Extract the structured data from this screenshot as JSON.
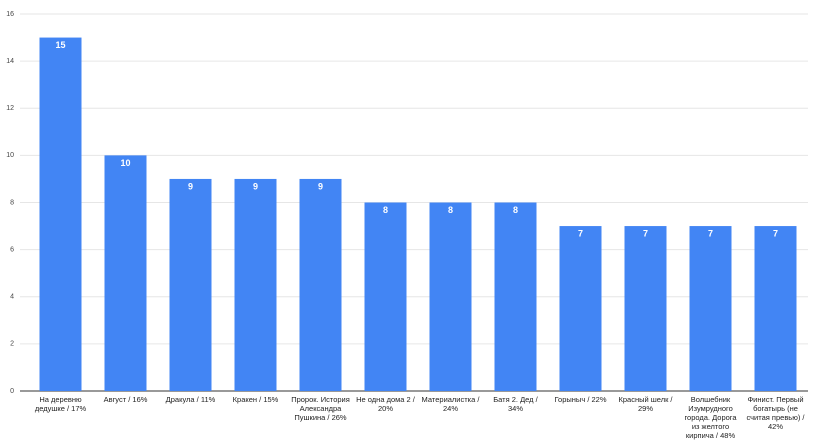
{
  "chart_data": {
    "type": "bar",
    "categories": [
      "На деревню дедушке / 17%",
      "Август / 16%",
      "Дракула / 11%",
      "Кракен / 15%",
      "Пророк. История Александра Пушкина / 26%",
      "Не одна дома 2 / 20%",
      "Материалистка / 24%",
      "Батя 2. Дед / 34%",
      "Горыныч / 22%",
      "Красный шелк / 29%",
      "Волшебник Изумрудного города. Дорога из желтого кирпича / 48%",
      "Финист. Первый богатырь (не считая превью) / 42%"
    ],
    "values": [
      15,
      10,
      9,
      9,
      9,
      8,
      8,
      8,
      7,
      7,
      7,
      7
    ],
    "color": "#4285f4",
    "ylim": [
      0,
      16
    ],
    "yticks": [
      0,
      2,
      4,
      6,
      8,
      10,
      12,
      14,
      16
    ],
    "grid": true
  }
}
